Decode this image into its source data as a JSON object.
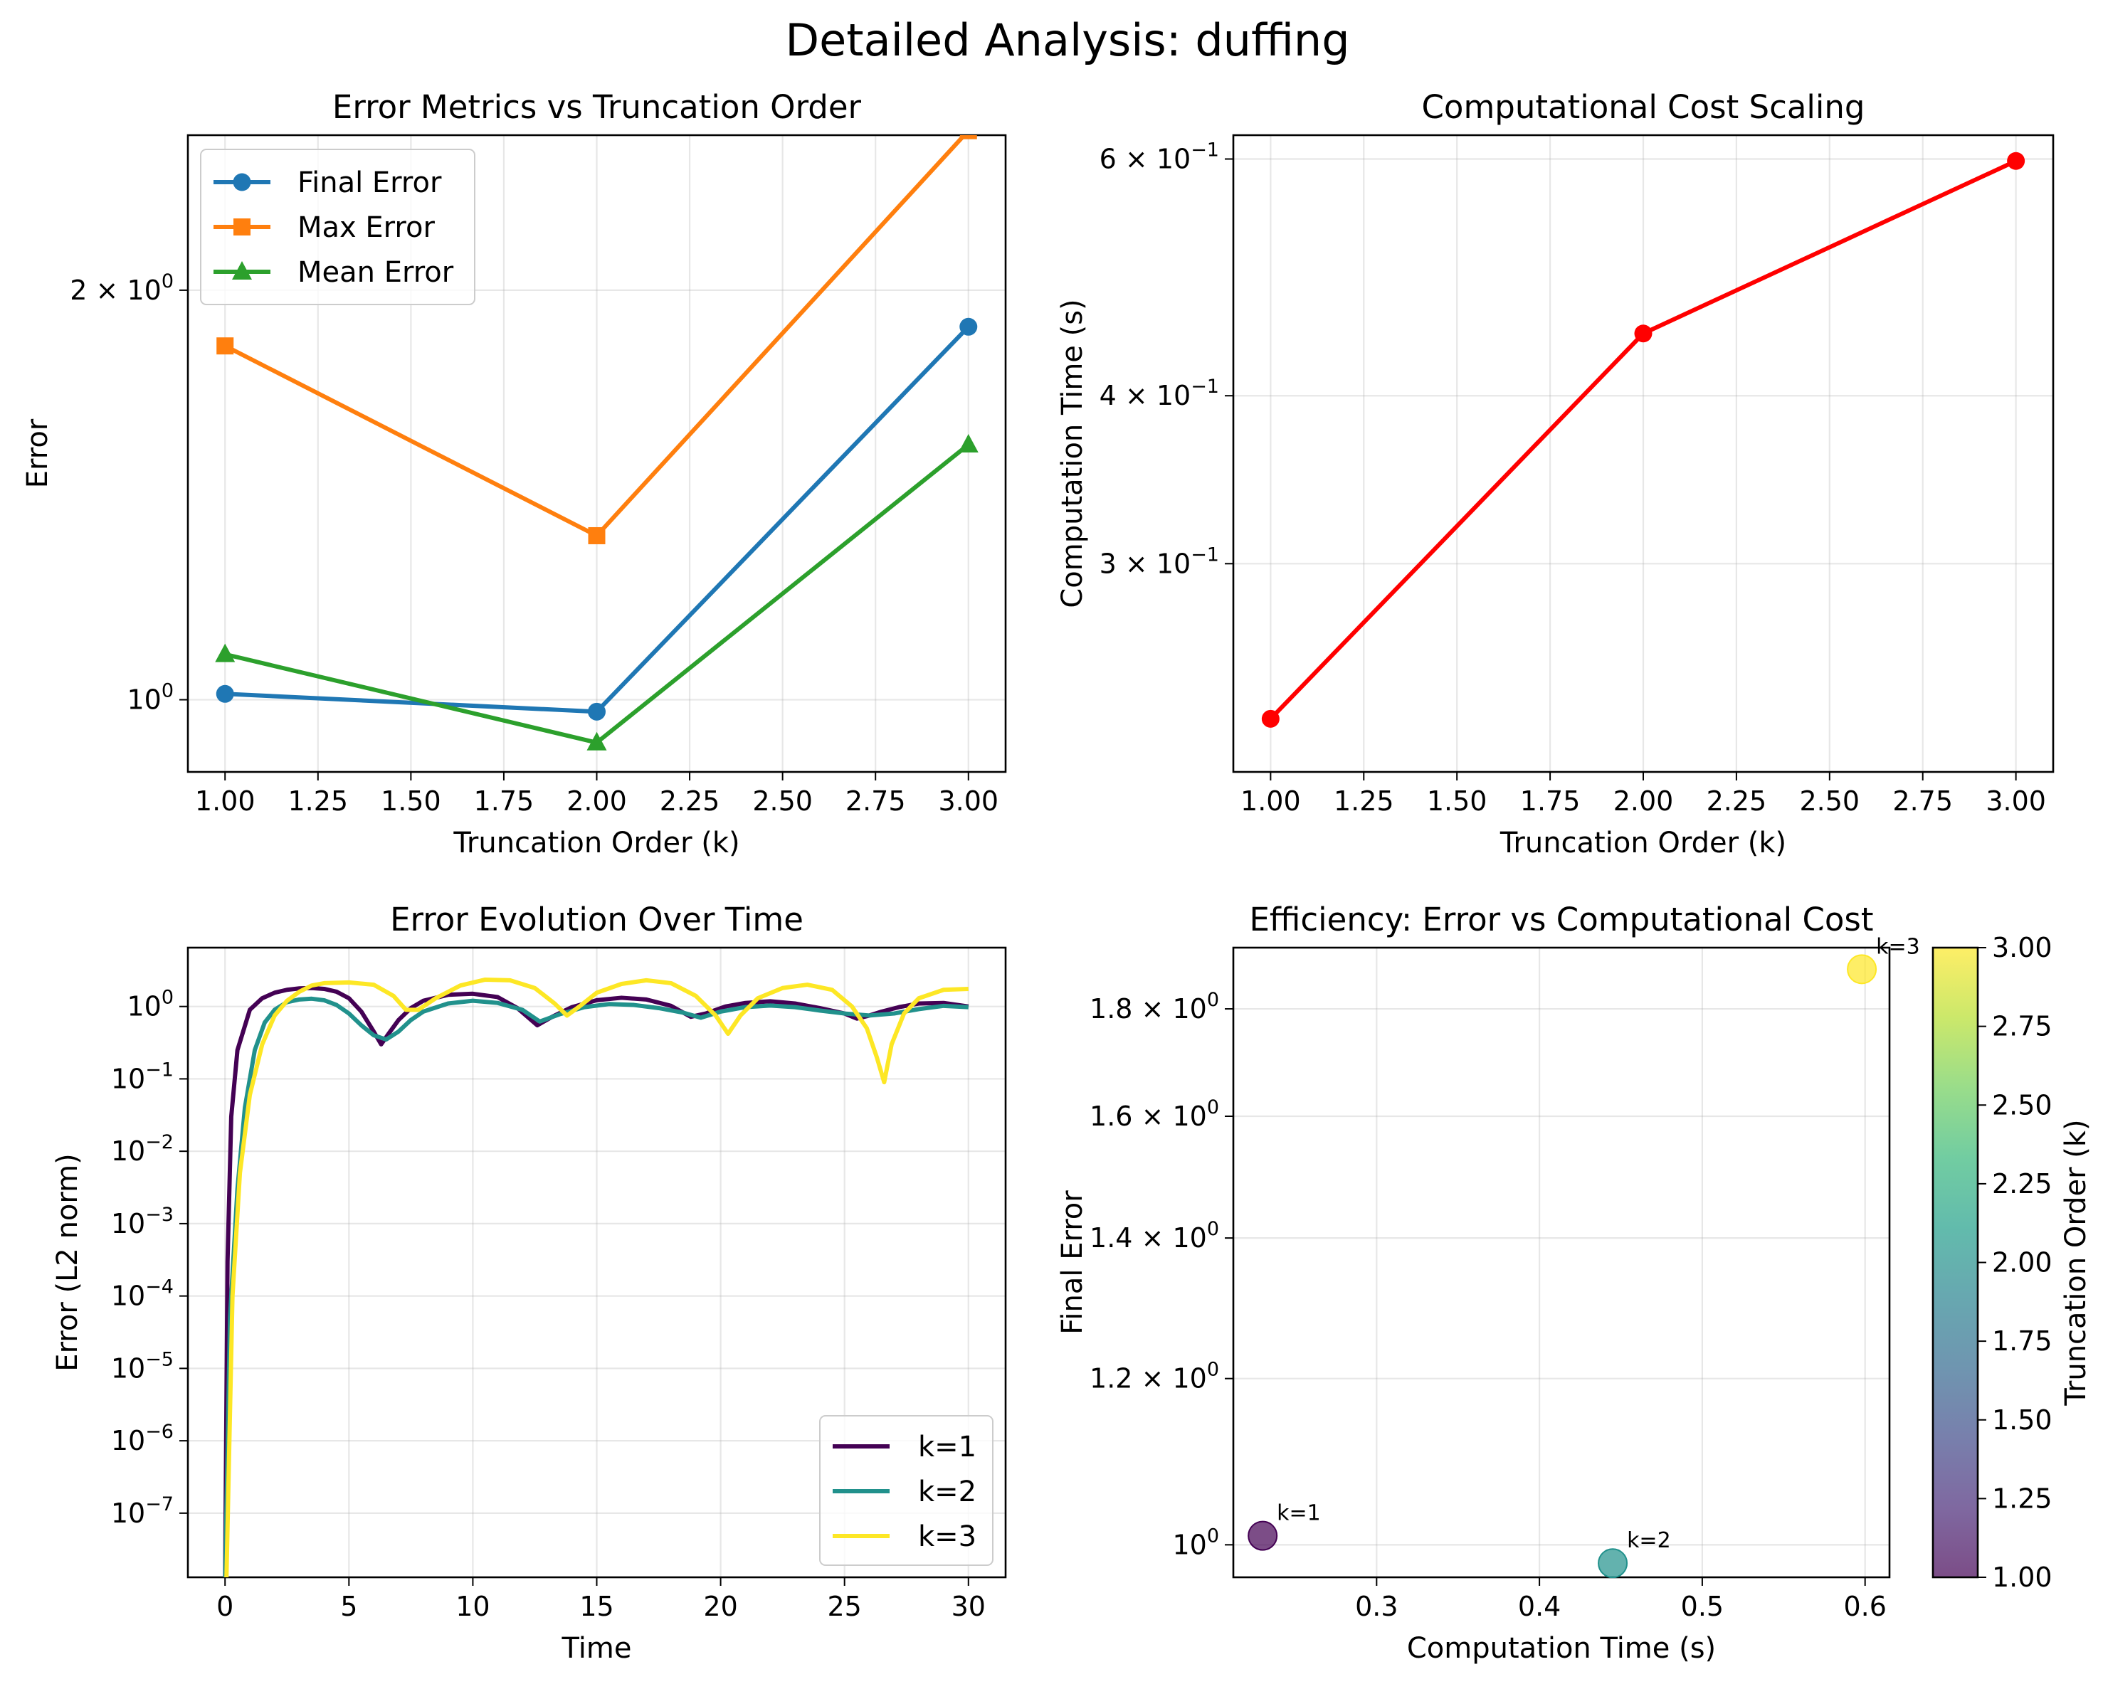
{
  "figure_title": "Detailed Analysis: duffing",
  "chart_data": [
    {
      "id": "panel-a",
      "type": "line",
      "title": "Error Metrics vs Truncation Order",
      "xlabel": "Truncation Order (k)",
      "ylabel": "Error",
      "xscale": "linear",
      "yscale": "log",
      "xlim": [
        0.9,
        3.1
      ],
      "ylim": [
        0.885,
        2.6
      ],
      "grid": true,
      "legend_position": "upper-left",
      "x": [
        1,
        2,
        3
      ],
      "series": [
        {
          "name": "Final Error",
          "marker": "circle",
          "color": "#1f77b4",
          "values": [
            1.01,
            0.98,
            1.88
          ]
        },
        {
          "name": "Max Error",
          "marker": "square",
          "color": "#ff7f0e",
          "values": [
            1.82,
            1.32,
            2.62
          ]
        },
        {
          "name": "Mean Error",
          "marker": "triangle",
          "color": "#2ca02c",
          "values": [
            1.08,
            0.93,
            1.54
          ]
        }
      ],
      "xticks": [
        "1.00",
        "1.25",
        "1.50",
        "1.75",
        "2.00",
        "2.25",
        "2.50",
        "2.75",
        "3.00"
      ],
      "xtick_values": [
        1.0,
        1.25,
        1.5,
        1.75,
        2.0,
        2.25,
        2.5,
        2.75,
        3.0
      ],
      "yticks": [
        {
          "value": 1,
          "base": "10",
          "exp": "0"
        },
        {
          "value": 2,
          "base": "2 × 10",
          "exp": "0"
        }
      ]
    },
    {
      "id": "panel-b",
      "type": "line",
      "title": "Computational Cost Scaling",
      "xlabel": "Truncation Order (k)",
      "ylabel": "Computation Time (s)",
      "xscale": "linear",
      "yscale": "log",
      "xlim": [
        0.9,
        3.1
      ],
      "ylim": [
        0.21,
        0.625
      ],
      "grid": true,
      "x": [
        1,
        2,
        3
      ],
      "series": [
        {
          "name": "",
          "marker": "circle",
          "color": "#ff0000",
          "values": [
            0.23,
            0.445,
            0.598
          ]
        }
      ],
      "xticks": [
        "1.00",
        "1.25",
        "1.50",
        "1.75",
        "2.00",
        "2.25",
        "2.50",
        "2.75",
        "3.00"
      ],
      "xtick_values": [
        1.0,
        1.25,
        1.5,
        1.75,
        2.0,
        2.25,
        2.5,
        2.75,
        3.0
      ],
      "yticks": [
        {
          "value": 0.3,
          "base": "3 × 10",
          "exp": "−1"
        },
        {
          "value": 0.4,
          "base": "4 × 10",
          "exp": "−1"
        },
        {
          "value": 0.6,
          "base": "6 × 10",
          "exp": "−1"
        }
      ]
    },
    {
      "id": "panel-c",
      "type": "line",
      "title": "Error Evolution Over Time",
      "xlabel": "Time",
      "ylabel": "Error (L2 norm)",
      "xscale": "linear",
      "yscale": "log",
      "xlim": [
        -1.5,
        31.5
      ],
      "ylim": [
        1.3e-08,
        6.5
      ],
      "grid": true,
      "legend_position": "lower-right",
      "series": [
        {
          "name": "k=1",
          "color": "#440154",
          "x": [
            0,
            0.1,
            0.25,
            0.5,
            1,
            1.5,
            2,
            2.5,
            3,
            3.5,
            4,
            4.5,
            5,
            5.5,
            6,
            6.3,
            6.6,
            7,
            7.5,
            8,
            9,
            10,
            11,
            11.8,
            12.6,
            13.2,
            14,
            15,
            16,
            17,
            18,
            18.8,
            19.4,
            20.2,
            21,
            22,
            23,
            24,
            25,
            25.5,
            26,
            26.5,
            27.2,
            28,
            29,
            30
          ],
          "values": [
            1e-08,
            0.0003,
            0.03,
            0.25,
            0.9,
            1.3,
            1.55,
            1.7,
            1.78,
            1.8,
            1.75,
            1.6,
            1.3,
            0.85,
            0.45,
            0.3,
            0.42,
            0.65,
            0.95,
            1.2,
            1.45,
            1.5,
            1.35,
            0.95,
            0.55,
            0.72,
            0.98,
            1.22,
            1.32,
            1.25,
            1.02,
            0.72,
            0.8,
            1.0,
            1.12,
            1.18,
            1.1,
            0.95,
            0.8,
            0.68,
            0.75,
            0.85,
            0.98,
            1.1,
            1.12,
            1.0
          ]
        },
        {
          "name": "k=2",
          "color": "#21918c",
          "x": [
            0,
            0.2,
            0.5,
            0.8,
            1.2,
            1.6,
            2,
            2.5,
            3,
            3.5,
            4,
            4.5,
            5,
            5.5,
            6,
            6.5,
            7,
            7.5,
            8,
            9,
            10,
            11,
            12,
            12.7,
            13.5,
            14.5,
            15.5,
            16.5,
            17.5,
            18.5,
            19.2,
            20,
            21,
            22,
            23,
            24,
            25,
            26,
            27,
            28,
            29,
            30
          ],
          "values": [
            1e-08,
            5e-05,
            0.003,
            0.04,
            0.25,
            0.6,
            0.9,
            1.15,
            1.25,
            1.28,
            1.22,
            1.05,
            0.8,
            0.55,
            0.4,
            0.35,
            0.45,
            0.65,
            0.85,
            1.1,
            1.2,
            1.12,
            0.9,
            0.62,
            0.78,
            0.98,
            1.08,
            1.05,
            0.95,
            0.82,
            0.7,
            0.85,
            0.98,
            1.03,
            0.98,
            0.88,
            0.8,
            0.75,
            0.8,
            0.92,
            1.02,
            0.98
          ]
        },
        {
          "name": "k=3",
          "color": "#fde725",
          "x": [
            0,
            0.05,
            0.3,
            0.6,
            1,
            1.5,
            2,
            2.5,
            3,
            3.5,
            4,
            5,
            6,
            6.8,
            7.3,
            7.8,
            8.5,
            9.5,
            10.5,
            11.5,
            12.5,
            13.3,
            13.8,
            14.3,
            15,
            16,
            17,
            18,
            19,
            19.8,
            20.3,
            20.8,
            21.5,
            22.5,
            23.5,
            24.5,
            25.3,
            25.9,
            26.3,
            26.6,
            26.9,
            27.4,
            28,
            29,
            30
          ],
          "values": [
            1e-08,
            1e-08,
            0.0001,
            0.005,
            0.06,
            0.3,
            0.75,
            1.2,
            1.6,
            1.95,
            2.1,
            2.15,
            2.0,
            1.4,
            0.9,
            0.9,
            1.3,
            1.95,
            2.35,
            2.3,
            1.8,
            1.1,
            0.75,
            1.0,
            1.55,
            2.05,
            2.3,
            2.1,
            1.4,
            0.75,
            0.42,
            0.75,
            1.3,
            1.8,
            2.0,
            1.7,
            1.0,
            0.5,
            0.2,
            0.09,
            0.3,
            0.8,
            1.3,
            1.7,
            1.75
          ]
        }
      ],
      "xticks": [
        "0",
        "5",
        "10",
        "15",
        "20",
        "25",
        "30"
      ],
      "xtick_values": [
        0,
        5,
        10,
        15,
        20,
        25,
        30
      ],
      "yticks": [
        {
          "value": 1,
          "base": "10",
          "exp": "0"
        },
        {
          "value": 0.1,
          "base": "10",
          "exp": "−1"
        },
        {
          "value": 0.01,
          "base": "10",
          "exp": "−2"
        },
        {
          "value": 0.001,
          "base": "10",
          "exp": "−3"
        },
        {
          "value": 0.0001,
          "base": "10",
          "exp": "−4"
        },
        {
          "value": 1e-05,
          "base": "10",
          "exp": "−5"
        },
        {
          "value": 1e-06,
          "base": "10",
          "exp": "−6"
        },
        {
          "value": 1e-07,
          "base": "10",
          "exp": "−7"
        }
      ]
    },
    {
      "id": "panel-d",
      "type": "scatter",
      "title": "Efficiency: Error vs Computational Cost",
      "xlabel": "Computation Time (s)",
      "ylabel": "Final Error",
      "xscale": "linear",
      "yscale": "log",
      "xlim": [
        0.212,
        0.615
      ],
      "ylim": [
        0.965,
        1.925
      ],
      "grid": true,
      "points": [
        {
          "x": 0.23,
          "y": 1.01,
          "k": 1,
          "label": "k=1",
          "color": "#440154"
        },
        {
          "x": 0.445,
          "y": 0.98,
          "k": 2,
          "label": "k=2",
          "color": "#21918c"
        },
        {
          "x": 0.598,
          "y": 1.88,
          "k": 3,
          "label": "k=3",
          "color": "#fde725"
        }
      ],
      "xticks": [
        "0.3",
        "0.4",
        "0.5",
        "0.6"
      ],
      "xtick_values": [
        0.3,
        0.4,
        0.5,
        0.6
      ],
      "yticks": [
        {
          "value": 1.0,
          "base": "10",
          "exp": "0"
        },
        {
          "value": 1.2,
          "base": "1.2 × 10",
          "exp": "0"
        },
        {
          "value": 1.4,
          "base": "1.4 × 10",
          "exp": "0"
        },
        {
          "value": 1.6,
          "base": "1.6 × 10",
          "exp": "0"
        },
        {
          "value": 1.8,
          "base": "1.8 × 10",
          "exp": "0"
        }
      ],
      "colorbar": {
        "label": "Truncation Order (k)",
        "colormap": "viridis",
        "range": [
          1.0,
          3.0
        ],
        "ticks": [
          "1.00",
          "1.25",
          "1.50",
          "1.75",
          "2.00",
          "2.25",
          "2.50",
          "2.75",
          "3.00"
        ],
        "tick_values": [
          1.0,
          1.25,
          1.5,
          1.75,
          2.0,
          2.25,
          2.5,
          2.75,
          3.0
        ]
      }
    }
  ]
}
